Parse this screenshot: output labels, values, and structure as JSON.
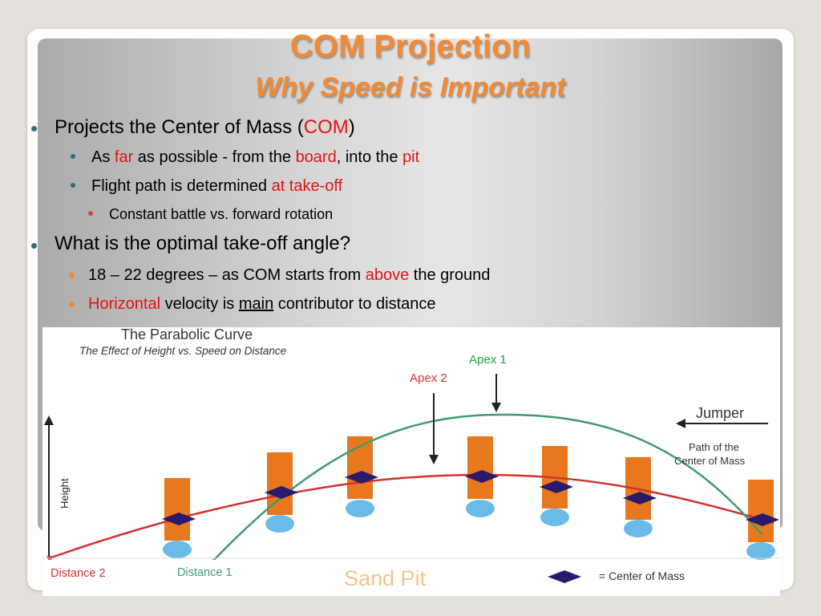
{
  "slide": {
    "title": "COM Projection",
    "subtitle": "Why Speed is Important"
  },
  "bullets": {
    "b1": {
      "pre": "Projects the Center of Mass (",
      "hl": "COM",
      "post": ")"
    },
    "b1a": {
      "t1": "As ",
      "h1": "far",
      "t2": " as possible - from the ",
      "h2": "board",
      "t3": ", into the ",
      "h3": "pit"
    },
    "b1b": {
      "t1": "Flight path is determined ",
      "h1": "at take-off"
    },
    "b1b1": {
      "text": "Constant battle vs. forward rotation"
    },
    "b2": {
      "text": "What is the optimal take-off angle?"
    },
    "b2a": {
      "t1": "18 – 22 degrees –  as COM starts from ",
      "h1": "above",
      "t2": " the ground"
    },
    "b2b": {
      "h1": "Horizontal",
      "t1": " velocity is ",
      "u1": "main",
      "t2": " contributor to distance"
    }
  },
  "diagram": {
    "title": "The Parabolic Curve",
    "subtitle": "The Effect of Height vs. Speed on Distance",
    "apex1": "Apex 1",
    "apex2": "Apex 2",
    "jumper": "Jumper",
    "path_label_1": "Path of the",
    "path_label_2": "Center of Mass",
    "height_label": "Height",
    "distance2": "Distance 2",
    "distance1": "Distance 1",
    "sand_pit": "Sand Pit",
    "legend": "= Center of Mass",
    "colors": {
      "orange_bar": "#e8781e",
      "diamond": "#2b1a6b",
      "ball": "#6bbbe8",
      "red_curve": "#d2322d",
      "green_curve": "#3f9a6f",
      "sand_text": "#f3c48e",
      "apex1": "#1e9e4a",
      "apex2": "#d2322d"
    }
  }
}
